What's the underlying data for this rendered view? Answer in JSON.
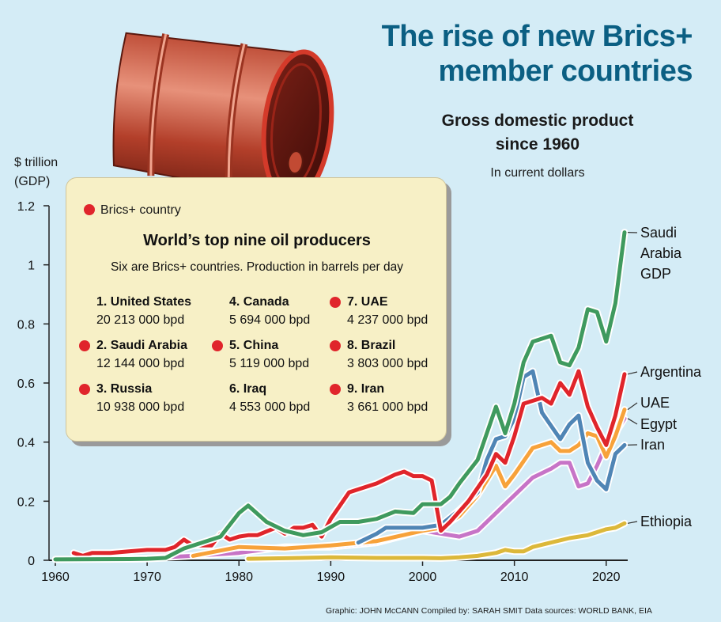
{
  "header": {
    "title_line1": "The rise of new Brics+",
    "title_line2": "member countries",
    "subtitle_line1": "Gross domestic product",
    "subtitle_line2": "since 1960",
    "note": "In current dollars"
  },
  "axis_unit": {
    "line1": "$ trillion",
    "line2": "(GDP)"
  },
  "credit": "Graphic: JOHN McCANN  Compiled by: SARAH SMIT  Data sources: WORLD BANK, EIA",
  "infobox": {
    "legend_label": "Brics+ country",
    "title": "World’s top nine oil producers",
    "subtitle": "Six are Brics+ countries. Production in barrels per day",
    "producers": [
      {
        "name": "1. United States",
        "value": "20 213 000 bpd",
        "brics": false
      },
      {
        "name": "2. Saudi Arabia",
        "value": "12 144 000 bpd",
        "brics": true
      },
      {
        "name": "3. Russia",
        "value": "10 938 000 bpd",
        "brics": true
      },
      {
        "name": "4. Canada",
        "value": "5 694 000 bpd",
        "brics": false
      },
      {
        "name": "5. China",
        "value": "5 119 000 bpd",
        "brics": true
      },
      {
        "name": "6. Iraq",
        "value": "4 553 000 bpd",
        "brics": false
      },
      {
        "name": "7. UAE",
        "value": "4 237 000 bpd",
        "brics": true
      },
      {
        "name": "8. Brazil",
        "value": "3 803 000 bpd",
        "brics": true
      },
      {
        "name": "9. Iran",
        "value": "3 661 000 bpd",
        "brics": true
      }
    ]
  },
  "colors": {
    "title": "#0b5f83",
    "background": "#d4ecf6",
    "brics_dot": "#e0252b",
    "saudi": "#3f9a5e",
    "argentina": "#e0252b",
    "uae": "#f7a23a",
    "egypt": "#c774c7",
    "iran": "#4f85b5",
    "ethiopia": "#dcb83a"
  },
  "chart_data": {
    "type": "line",
    "xlim": [
      1960,
      2022
    ],
    "ylim": [
      0,
      1.2
    ],
    "x_ticks": [
      "1960",
      "1970",
      "1980",
      "1990",
      "2000",
      "2010",
      "2020"
    ],
    "y_ticks": [
      "0",
      "0.2",
      "0.4",
      "0.6",
      "0.8",
      "1",
      "1.2"
    ],
    "grid": false,
    "series": [
      {
        "name": "Saudi Arabia GDP",
        "label_lines": [
          "Saudi",
          "Arabia",
          "GDP"
        ],
        "color": "#3f9a5e",
        "x": [
          1960,
          1968,
          1970,
          1972,
          1974,
          1976,
          1978,
          1980,
          1981,
          1983,
          1985,
          1987,
          1989,
          1991,
          1993,
          1995,
          1997,
          1999,
          2000,
          2002,
          2003,
          2004,
          2006,
          2008,
          2009,
          2010,
          2011,
          2012,
          2014,
          2015,
          2016,
          2017,
          2018,
          2019,
          2020,
          2021,
          2022
        ],
        "values": [
          0.003,
          0.004,
          0.005,
          0.008,
          0.04,
          0.06,
          0.08,
          0.16,
          0.185,
          0.13,
          0.1,
          0.085,
          0.095,
          0.13,
          0.13,
          0.14,
          0.165,
          0.16,
          0.19,
          0.19,
          0.215,
          0.26,
          0.34,
          0.52,
          0.43,
          0.53,
          0.67,
          0.74,
          0.76,
          0.67,
          0.66,
          0.72,
          0.85,
          0.84,
          0.74,
          0.87,
          1.11
        ]
      },
      {
        "name": "Argentina",
        "label_lines": [
          "Argentina"
        ],
        "color": "#e0252b",
        "x": [
          1962,
          1963,
          1964,
          1966,
          1968,
          1970,
          1972,
          1973,
          1974,
          1975,
          1976,
          1977,
          1978,
          1979,
          1980,
          1981,
          1982,
          1984,
          1985,
          1986,
          1987,
          1988,
          1989,
          1990,
          1992,
          1993,
          1995,
          1997,
          1998,
          1999,
          2000,
          2001,
          2002,
          2003,
          2005,
          2007,
          2008,
          2009,
          2010,
          2011,
          2013,
          2014,
          2015,
          2016,
          2017,
          2018,
          2019,
          2020,
          2021,
          2022
        ],
        "values": [
          0.025,
          0.015,
          0.025,
          0.025,
          0.03,
          0.035,
          0.035,
          0.045,
          0.07,
          0.05,
          0.05,
          0.05,
          0.09,
          0.07,
          0.08,
          0.085,
          0.085,
          0.11,
          0.09,
          0.11,
          0.11,
          0.12,
          0.08,
          0.14,
          0.23,
          0.24,
          0.26,
          0.29,
          0.3,
          0.285,
          0.285,
          0.27,
          0.1,
          0.13,
          0.2,
          0.29,
          0.36,
          0.33,
          0.42,
          0.53,
          0.55,
          0.53,
          0.6,
          0.56,
          0.64,
          0.52,
          0.45,
          0.39,
          0.49,
          0.63
        ]
      },
      {
        "name": "UAE",
        "label_lines": [
          "UAE"
        ],
        "color": "#f7a23a",
        "x": [
          1975,
          1980,
          1985,
          1990,
          1995,
          2000,
          2002,
          2004,
          2006,
          2008,
          2009,
          2010,
          2012,
          2014,
          2015,
          2016,
          2017,
          2018,
          2019,
          2020,
          2021,
          2022
        ],
        "values": [
          0.015,
          0.045,
          0.04,
          0.05,
          0.065,
          0.1,
          0.11,
          0.15,
          0.22,
          0.32,
          0.25,
          0.29,
          0.38,
          0.4,
          0.37,
          0.37,
          0.39,
          0.43,
          0.42,
          0.35,
          0.42,
          0.51
        ]
      },
      {
        "name": "Egypt",
        "label_lines": [
          "Egypt"
        ],
        "color": "#c774c7",
        "x": [
          1965,
          1970,
          1975,
          1980,
          1985,
          1990,
          1995,
          2000,
          2002,
          2004,
          2006,
          2008,
          2010,
          2012,
          2014,
          2015,
          2016,
          2017,
          2018,
          2019,
          2020,
          2021,
          2022
        ],
        "values": [
          0.005,
          0.007,
          0.015,
          0.025,
          0.045,
          0.045,
          0.06,
          0.1,
          0.09,
          0.08,
          0.1,
          0.16,
          0.22,
          0.28,
          0.31,
          0.33,
          0.33,
          0.25,
          0.26,
          0.32,
          0.39,
          0.43,
          0.48
        ]
      },
      {
        "name": "Iran",
        "label_lines": [
          "Iran"
        ],
        "color": "#4f85b5",
        "x": [
          1993,
          1995,
          1996,
          1998,
          2000,
          2002,
          2004,
          2006,
          2007,
          2008,
          2009,
          2010,
          2011,
          2012,
          2013,
          2015,
          2016,
          2017,
          2018,
          2019,
          2020,
          2021,
          2022
        ],
        "values": [
          0.06,
          0.09,
          0.11,
          0.11,
          0.11,
          0.12,
          0.17,
          0.23,
          0.34,
          0.41,
          0.42,
          0.48,
          0.62,
          0.64,
          0.5,
          0.41,
          0.46,
          0.49,
          0.33,
          0.27,
          0.24,
          0.36,
          0.39
        ]
      },
      {
        "name": "Ethiopia",
        "label_lines": [
          "Ethiopia"
        ],
        "color": "#dcb83a",
        "x": [
          1981,
          1985,
          1990,
          1995,
          2000,
          2002,
          2004,
          2006,
          2008,
          2009,
          2010,
          2011,
          2012,
          2014,
          2016,
          2018,
          2020,
          2021,
          2022
        ],
        "values": [
          0.005,
          0.007,
          0.01,
          0.008,
          0.008,
          0.007,
          0.01,
          0.015,
          0.025,
          0.035,
          0.03,
          0.03,
          0.045,
          0.06,
          0.075,
          0.085,
          0.105,
          0.11,
          0.125
        ]
      }
    ]
  }
}
